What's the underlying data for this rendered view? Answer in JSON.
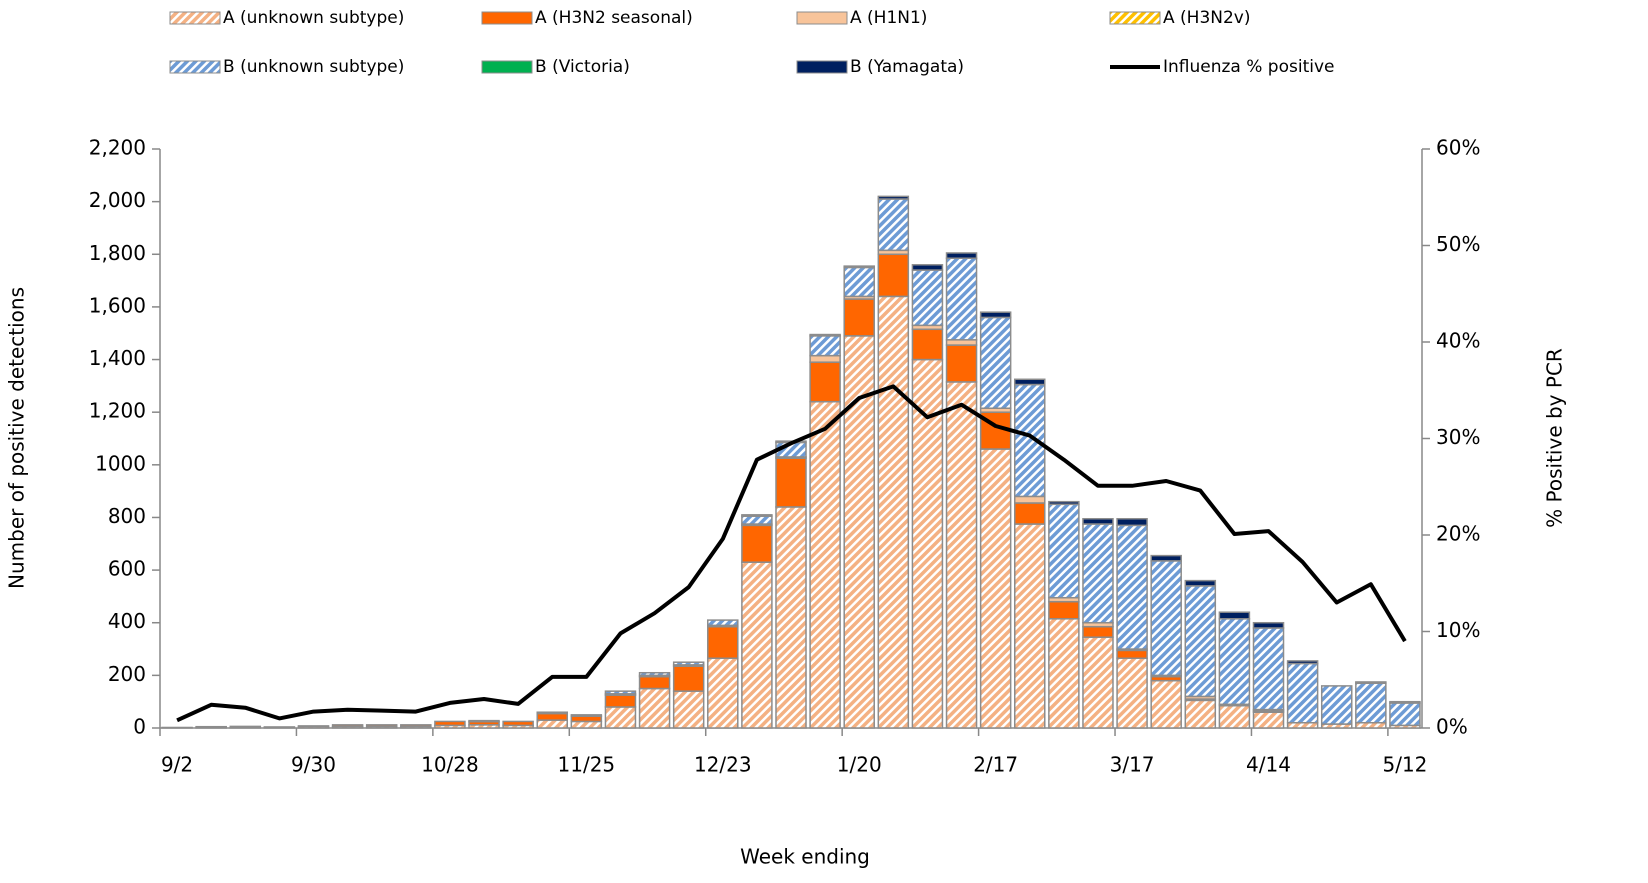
{
  "chart_data": {
    "type": "bar",
    "stacked": true,
    "ylabel": "Number of positive detections",
    "y2label": "% Positive by PCR",
    "xlabel": "Week ending",
    "categories": [
      "9/2",
      null,
      null,
      null,
      "9/30",
      null,
      null,
      null,
      "10/28",
      null,
      null,
      null,
      "11/25",
      null,
      null,
      null,
      "12/23",
      null,
      null,
      null,
      "1/20",
      null,
      null,
      null,
      "2/17",
      null,
      null,
      null,
      "3/17",
      null,
      null,
      null,
      "4/14",
      null,
      null,
      null,
      "5/12"
    ],
    "ylim": [
      0,
      2200
    ],
    "yticks": [
      0,
      200,
      400,
      600,
      800,
      1000,
      {
        "value": 1200,
        "label": "1,200"
      },
      {
        "value": 1400,
        "label": "1,400"
      },
      {
        "value": 1600,
        "label": "1,600"
      },
      {
        "value": 1800,
        "label": "1,800"
      },
      {
        "value": 2000,
        "label": "2,000"
      },
      {
        "value": 2200,
        "label": "2,200"
      }
    ],
    "y2lim": [
      0,
      60
    ],
    "y2ticks": [
      {
        "value": 0,
        "label": "0%"
      },
      {
        "value": 10,
        "label": "10%"
      },
      {
        "value": 20,
        "label": "20%"
      },
      {
        "value": 30,
        "label": "30%"
      },
      {
        "value": 40,
        "label": "40%"
      },
      {
        "value": 50,
        "label": "50%"
      },
      {
        "value": 60,
        "label": "60%"
      }
    ],
    "legend": "top",
    "series": [
      {
        "name": "A (unknown subtype)",
        "color": "#f4b183",
        "pattern": "hatch",
        "values": [
          2,
          4,
          5,
          3,
          6,
          6,
          6,
          6,
          10,
          12,
          10,
          30,
          25,
          80,
          150,
          140,
          265,
          630,
          840,
          1240,
          1490,
          1640,
          1400,
          1315,
          1060,
          775,
          415,
          345,
          265,
          180,
          105,
          85,
          60,
          20,
          15,
          20,
          10
        ]
      },
      {
        "name": "A (H3N2 seasonal)",
        "color": "#ff6600",
        "values": [
          0,
          1,
          1,
          1,
          2,
          6,
          6,
          6,
          15,
          12,
          15,
          25,
          20,
          45,
          45,
          95,
          120,
          140,
          185,
          150,
          140,
          160,
          115,
          140,
          140,
          80,
          65,
          40,
          30,
          15,
          5,
          5,
          5,
          0,
          0,
          0,
          0
        ]
      },
      {
        "name": "A (H1N1)",
        "color": "#f8c49a",
        "values": [
          0,
          0,
          0,
          0,
          0,
          0,
          0,
          0,
          0,
          0,
          0,
          0,
          0,
          5,
          5,
          5,
          5,
          5,
          5,
          25,
          10,
          15,
          15,
          20,
          15,
          25,
          15,
          15,
          5,
          5,
          10,
          0,
          5,
          0,
          0,
          0,
          0
        ]
      },
      {
        "name": "A (H3N2v)",
        "color": "#ffc000",
        "pattern": "hatch",
        "values": [
          0,
          0,
          0,
          0,
          0,
          0,
          0,
          0,
          0,
          0,
          0,
          0,
          0,
          0,
          0,
          0,
          0,
          0,
          0,
          0,
          0,
          0,
          0,
          0,
          0,
          0,
          0,
          0,
          0,
          0,
          0,
          0,
          0,
          0,
          0,
          0,
          0
        ]
      },
      {
        "name": "B (unknown subtype)",
        "color": "#6d9bd5",
        "pattern": "hatch",
        "values": [
          0,
          0,
          0,
          0,
          0,
          0,
          0,
          0,
          0,
          4,
          0,
          5,
          5,
          10,
          10,
          10,
          20,
          30,
          55,
          75,
          110,
          195,
          210,
          310,
          345,
          425,
          355,
          375,
          470,
          435,
          420,
          325,
          310,
          225,
          145,
          150,
          85
        ]
      },
      {
        "name": "B (Victoria)",
        "color": "#00b050",
        "values": [
          0,
          0,
          0,
          0,
          0,
          0,
          0,
          0,
          0,
          0,
          0,
          0,
          0,
          0,
          0,
          0,
          0,
          0,
          0,
          0,
          0,
          0,
          0,
          0,
          0,
          0,
          0,
          0,
          0,
          0,
          0,
          0,
          0,
          0,
          0,
          0,
          0
        ]
      },
      {
        "name": "B (Yamagata)",
        "color": "#002060",
        "values": [
          0,
          0,
          0,
          0,
          0,
          0,
          0,
          0,
          0,
          0,
          0,
          0,
          0,
          0,
          0,
          0,
          0,
          5,
          5,
          5,
          5,
          10,
          20,
          20,
          20,
          20,
          10,
          20,
          25,
          20,
          20,
          25,
          20,
          10,
          0,
          5,
          5
        ]
      },
      {
        "name": "Influenza % positive",
        "color": "#000000",
        "type": "line",
        "axis": "y2",
        "values": [
          0.8,
          2.4,
          2.1,
          1.0,
          1.7,
          1.9,
          1.8,
          1.7,
          2.6,
          3.0,
          2.5,
          5.3,
          5.3,
          9.8,
          11.9,
          14.6,
          19.6,
          27.8,
          29.5,
          31.0,
          34.2,
          35.4,
          32.2,
          33.5,
          31.3,
          30.3,
          27.8,
          25.1,
          25.1,
          25.6,
          24.6,
          20.1,
          20.4,
          17.2,
          13.0,
          14.9,
          9.0
        ]
      }
    ]
  }
}
